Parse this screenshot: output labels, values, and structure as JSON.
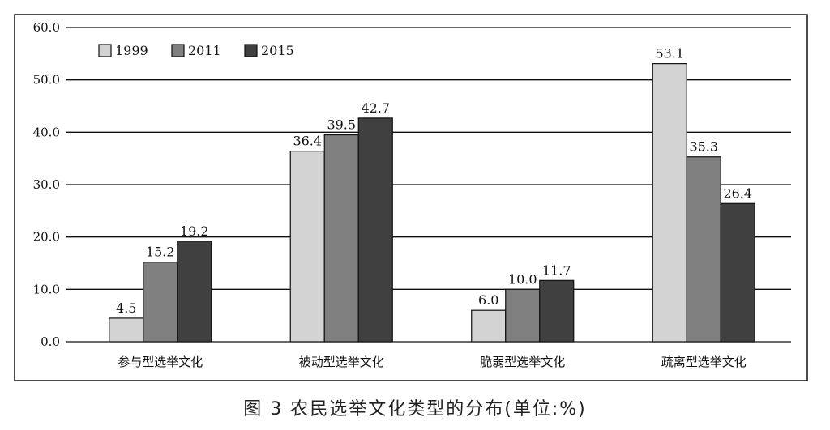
{
  "caption": "图 3   农民选举文化类型的分布(单位:%)",
  "chart_data": {
    "type": "bar",
    "title": "",
    "xlabel": "",
    "ylabel": "",
    "ylim": [
      0,
      60
    ],
    "yticks": [
      "0.0",
      "10.0",
      "20.0",
      "30.0",
      "40.0",
      "50.0",
      "60.0"
    ],
    "grid": true,
    "legend_position": "top-left",
    "categories": [
      "参与型选举文化",
      "被动型选举文化",
      "脆弱型选举文化",
      "疏离型选举文化"
    ],
    "series": [
      {
        "name": "1999",
        "color": "#d3d3d3",
        "values": [
          4.5,
          36.4,
          6.0,
          53.1
        ],
        "labels": [
          "4.5",
          "36.4",
          "6.0",
          "53.1"
        ]
      },
      {
        "name": "2011",
        "color": "#808080",
        "values": [
          15.2,
          39.5,
          10.0,
          35.3
        ],
        "labels": [
          "15.2",
          "39.5",
          "10.0",
          "35.3"
        ]
      },
      {
        "name": "2015",
        "color": "#404040",
        "values": [
          19.2,
          42.7,
          11.7,
          26.4
        ],
        "labels": [
          "19.2",
          "42.7",
          "11.7",
          "26.4"
        ]
      }
    ]
  }
}
